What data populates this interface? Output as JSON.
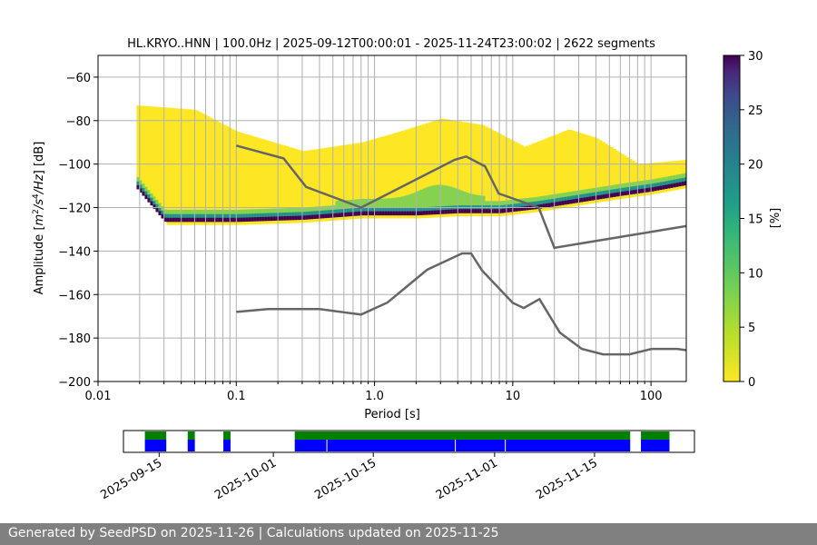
{
  "footer": {
    "text": "Generated by SeedPSD on 2025-11-26 | Calculations updated on 2025-11-25",
    "color": "#808080"
  },
  "colors": {
    "nlnm_nhnm": "#666666",
    "grid": "#b0b0b0",
    "availability_data": "#0000ff",
    "availability_gaps_top": "#008000"
  },
  "chart_data": [
    {
      "type": "heatmap",
      "title": "HL.KRYO..HNN | 100.0Hz | 2025-09-12T00:00:01 - 2025-11-24T23:00:02 | 2622 segments",
      "xlabel": "Period [s]",
      "ylabel": "Amplitude [m²/s⁴/Hz] [dB]",
      "xscale": "log",
      "xlim": [
        0.01,
        180
      ],
      "ylim": [
        -200,
        -50
      ],
      "xticks": [
        {
          "value": 0.01,
          "label": "0.01"
        },
        {
          "value": 0.1,
          "label": "0.1"
        },
        {
          "value": 1,
          "label": "1.0"
        },
        {
          "value": 10,
          "label": "10"
        },
        {
          "value": 100,
          "label": "100"
        }
      ],
      "yticks": [
        -60,
        -80,
        -100,
        -120,
        -140,
        -160,
        -180,
        -200
      ],
      "yticklabels": [
        "−60",
        "−80",
        "−100",
        "−120",
        "−140",
        "−160",
        "−180",
        "−200"
      ],
      "grid": true,
      "colormap": "viridis_r",
      "colorbar": {
        "label": "[%]",
        "range": [
          0,
          30
        ],
        "ticks": [
          0,
          5,
          10,
          15,
          20,
          25,
          30
        ],
        "ticklabels": [
          "0",
          "5",
          "10",
          "15",
          "20",
          "25",
          "30"
        ]
      },
      "psd_mode_curve": [
        [
          0.019,
          -110
        ],
        [
          0.03,
          -125
        ],
        [
          0.1,
          -125
        ],
        [
          0.3,
          -124
        ],
        [
          0.8,
          -122
        ],
        [
          2,
          -122
        ],
        [
          4,
          -121
        ],
        [
          8,
          -121
        ],
        [
          15,
          -119
        ],
        [
          30,
          -116
        ],
        [
          60,
          -113
        ],
        [
          100,
          -111
        ],
        [
          180,
          -108
        ]
      ],
      "psd_upper_envelope": [
        [
          0.019,
          -73
        ],
        [
          0.05,
          -75
        ],
        [
          0.1,
          -85
        ],
        [
          0.3,
          -94
        ],
        [
          0.8,
          -90
        ],
        [
          1.5,
          -85
        ],
        [
          3,
          -79
        ],
        [
          6,
          -82
        ],
        [
          12,
          -92
        ],
        [
          25,
          -84
        ],
        [
          40,
          -88
        ],
        [
          80,
          -100
        ],
        [
          180,
          -98
        ]
      ],
      "nhnm": [
        [
          0.1,
          -91.5
        ],
        [
          0.22,
          -97.4
        ],
        [
          0.32,
          -110.5
        ],
        [
          0.8,
          -120
        ],
        [
          3.8,
          -98
        ],
        [
          4.6,
          -96.5
        ],
        [
          6.3,
          -101
        ],
        [
          7.9,
          -113.5
        ],
        [
          15.4,
          -120
        ],
        [
          20,
          -138.5
        ],
        [
          180,
          -128.5
        ]
      ],
      "nlnm": [
        [
          0.1,
          -168
        ],
        [
          0.17,
          -166.7
        ],
        [
          0.4,
          -166.7
        ],
        [
          0.8,
          -169.2
        ],
        [
          1.24,
          -163.7
        ],
        [
          2.4,
          -148.6
        ],
        [
          4.3,
          -141.1
        ],
        [
          5.0,
          -141.1
        ],
        [
          6.0,
          -149
        ],
        [
          10,
          -163.8
        ],
        [
          12,
          -166.2
        ],
        [
          15.6,
          -162.1
        ],
        [
          21.9,
          -177.5
        ],
        [
          31.6,
          -185
        ],
        [
          45,
          -187.5
        ],
        [
          70,
          -187.5
        ],
        [
          101,
          -185
        ],
        [
          154,
          -185
        ],
        [
          180,
          -185.6
        ]
      ]
    },
    {
      "type": "bar",
      "title": "",
      "date_ticks": [
        "2025-09-15",
        "2025-10-01",
        "2025-10-15",
        "2025-11-01",
        "2025-11-15"
      ],
      "date_range": [
        "2025-09-10",
        "2025-11-29"
      ],
      "data_segments": [
        [
          "2025-09-13",
          "2025-09-16"
        ],
        [
          "2025-09-19",
          "2025-09-20"
        ],
        [
          "2025-09-24",
          "2025-09-25"
        ],
        [
          "2025-10-04",
          "2025-11-20"
        ],
        [
          "2025-11-21.5",
          "2025-11-25.5"
        ]
      ]
    }
  ]
}
